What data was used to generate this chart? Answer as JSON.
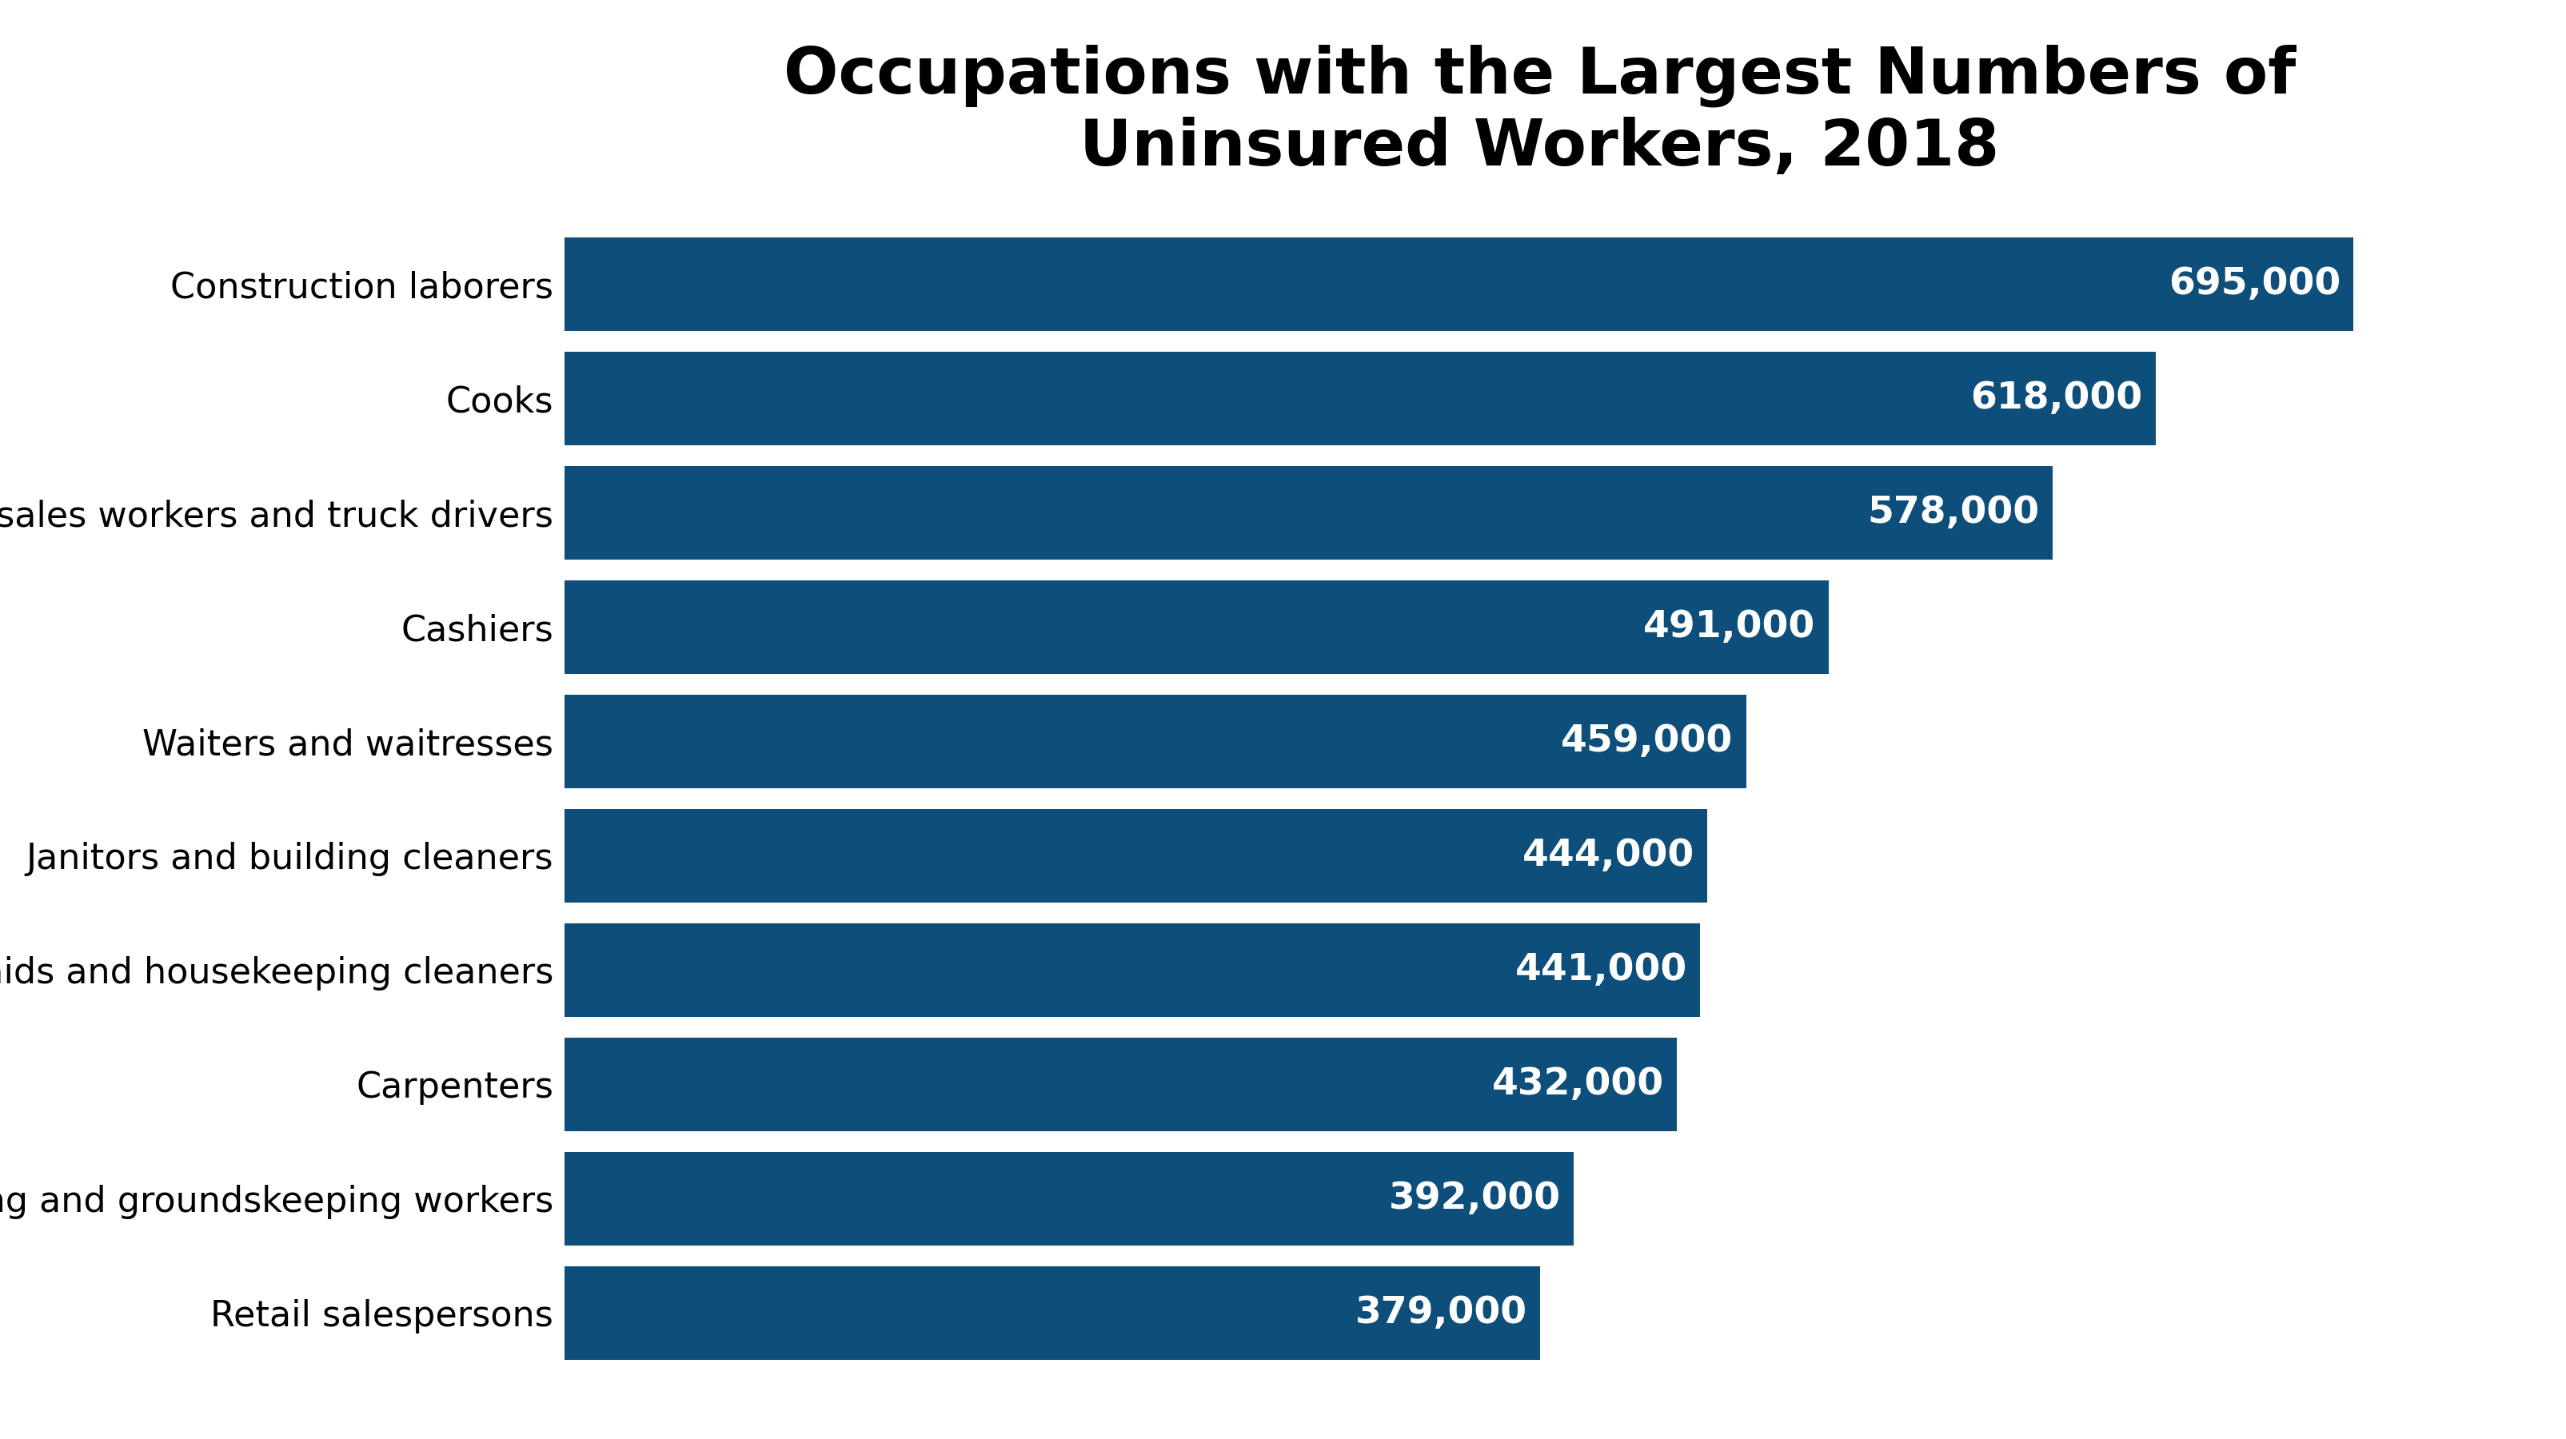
{
  "title": "Occupations with the Largest Numbers of\nUninsured Workers, 2018",
  "categories": [
    "Construction laborers",
    "Cooks",
    "Driver/sales workers and truck drivers",
    "Cashiers",
    "Waiters and waitresses",
    "Janitors and building cleaners",
    "Maids and housekeeping cleaners",
    "Carpenters",
    "Landscaping and groundskeeping workers",
    "Retail salespersons"
  ],
  "values": [
    695000,
    618000,
    578000,
    491000,
    459000,
    444000,
    441000,
    432000,
    392000,
    379000
  ],
  "labels": [
    "695,000",
    "618,000",
    "578,000",
    "491,000",
    "459,000",
    "444,000",
    "441,000",
    "432,000",
    "392,000",
    "379,000"
  ],
  "bar_color": "#0d4e7a",
  "background_color": "#ffffff",
  "title_fontsize": 58,
  "value_fontsize": 34,
  "bar_label_color": "#ffffff",
  "category_fontsize": 32,
  "bar_height": 0.82
}
